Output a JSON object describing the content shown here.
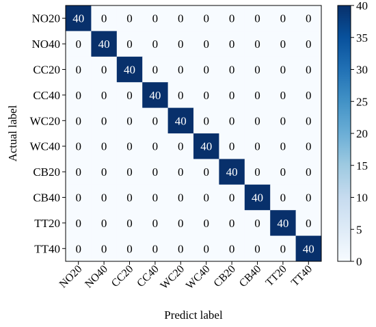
{
  "chart_data": {
    "type": "heatmap",
    "title": "",
    "xlabel": "Predict label",
    "ylabel": "Actual label",
    "x_categories": [
      "NO20",
      "NO40",
      "CC20",
      "CC40",
      "WC20",
      "WC40",
      "CB20",
      "CB40",
      "TT20",
      "TT40"
    ],
    "y_categories": [
      "NO20",
      "NO40",
      "CC20",
      "CC40",
      "WC20",
      "WC40",
      "CB20",
      "CB40",
      "TT20",
      "TT40"
    ],
    "matrix": [
      [
        40,
        0,
        0,
        0,
        0,
        0,
        0,
        0,
        0,
        0
      ],
      [
        0,
        40,
        0,
        0,
        0,
        0,
        0,
        0,
        0,
        0
      ],
      [
        0,
        0,
        40,
        0,
        0,
        0,
        0,
        0,
        0,
        0
      ],
      [
        0,
        0,
        0,
        40,
        0,
        0,
        0,
        0,
        0,
        0
      ],
      [
        0,
        0,
        0,
        0,
        40,
        0,
        0,
        0,
        0,
        0
      ],
      [
        0,
        0,
        0,
        0,
        0,
        40,
        0,
        0,
        0,
        0
      ],
      [
        0,
        0,
        0,
        0,
        0,
        0,
        40,
        0,
        0,
        0
      ],
      [
        0,
        0,
        0,
        0,
        0,
        0,
        0,
        40,
        0,
        0
      ],
      [
        0,
        0,
        0,
        0,
        0,
        0,
        0,
        0,
        40,
        0
      ],
      [
        0,
        0,
        0,
        0,
        0,
        0,
        0,
        0,
        0,
        40
      ]
    ],
    "colorbar": {
      "min": 0,
      "max": 40,
      "ticks": [
        0,
        5,
        10,
        15,
        20,
        25,
        30,
        35,
        40
      ],
      "colormap": "Blues",
      "low_color": "#f7fbff",
      "high_color": "#08306b"
    },
    "x_tick_rotation_deg": -45,
    "grid": false
  }
}
